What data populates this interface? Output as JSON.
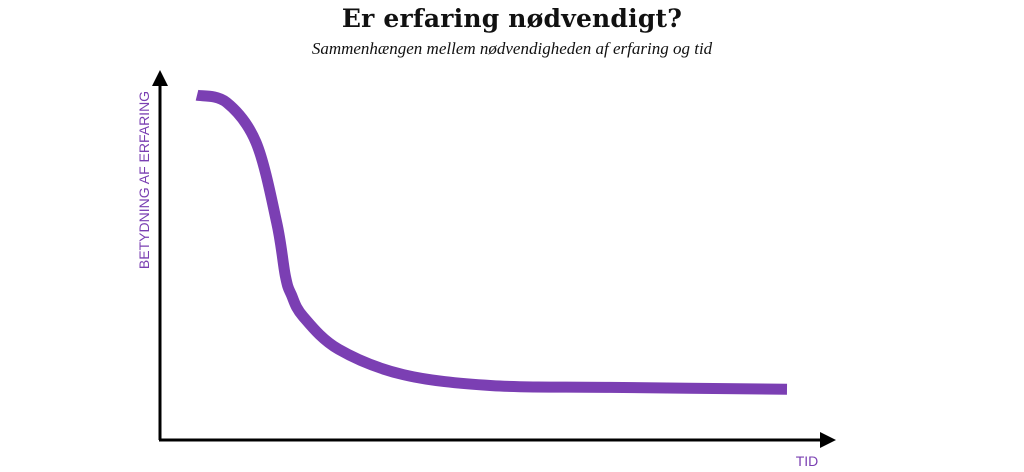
{
  "chart_data": {
    "type": "line",
    "title": "Er erfaring nødvendigt?",
    "subtitle": "Sammenhængen mellem nødvendigheden af erfaring og tid",
    "xlabel": "TID",
    "ylabel": "BETYDNING AF ERFARING",
    "grid": false,
    "legend": "none",
    "series": [
      {
        "color": "#7b3fb3",
        "x": [
          0.0,
          0.05,
          0.1,
          0.135,
          0.15,
          0.16,
          0.18,
          0.24,
          0.35,
          0.5,
          0.7,
          1.0
        ],
        "y": [
          0.95,
          0.93,
          0.82,
          0.6,
          0.45,
          0.4,
          0.34,
          0.25,
          0.18,
          0.15,
          0.145,
          0.14
        ]
      }
    ],
    "xlim": [
      0,
      1
    ],
    "ylim": [
      0,
      1
    ]
  }
}
